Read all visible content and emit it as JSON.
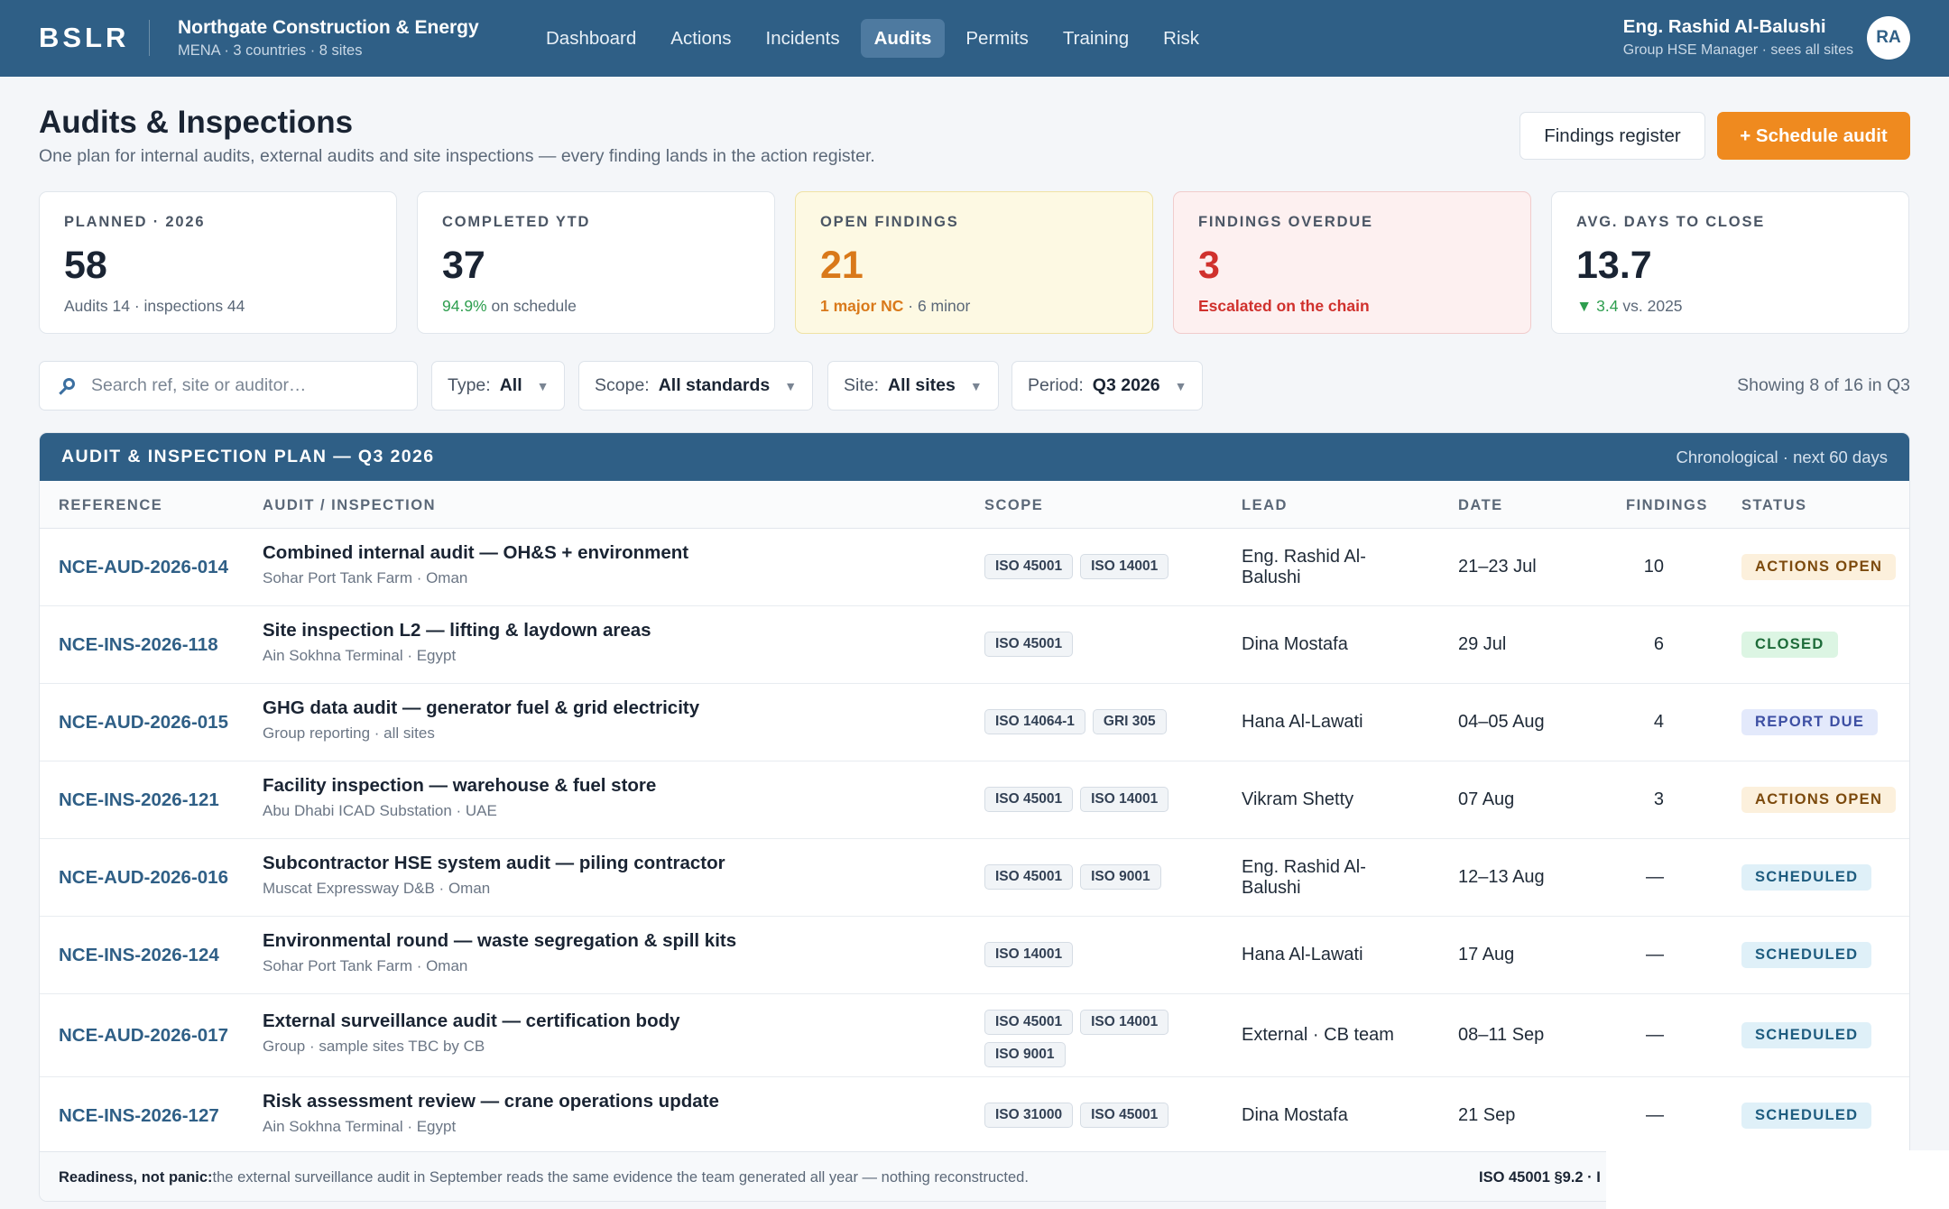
{
  "app": {
    "brand": "BSLR",
    "org_name": "Northgate Construction & Energy",
    "org_sub": "MENA · 3 countries · 8 sites"
  },
  "nav": [
    "Dashboard",
    "Actions",
    "Incidents",
    "Audits",
    "Permits",
    "Training",
    "Risk"
  ],
  "nav_active": "Audits",
  "user": {
    "name": "Eng. Rashid Al-Balushi",
    "role": "Group HSE Manager · sees all sites",
    "initials": "RA"
  },
  "page": {
    "title": "Audits & Inspections",
    "subtitle": "One plan for internal audits, external audits and site inspections — every finding lands in the action register.",
    "btn_findings": "Findings register",
    "btn_schedule": "+ Schedule audit"
  },
  "kpis": [
    {
      "label": "PLANNED · 2026",
      "value": "58",
      "note": "Audits 14 · inspections 44"
    },
    {
      "label": "COMPLETED YTD",
      "value": "37",
      "note_strong": "94.9%",
      "note_rest": " on schedule"
    },
    {
      "label": "OPEN FINDINGS",
      "value": "21",
      "note_strong": "1 major NC",
      "note_rest": " · 6 minor"
    },
    {
      "label": "FINDINGS OVERDUE",
      "value": "3",
      "note": "Escalated on the chain"
    },
    {
      "label": "AVG. DAYS TO CLOSE",
      "value": "13.7",
      "note_strong": "▼ 3.4",
      "note_rest": " vs. 2025"
    }
  ],
  "filters": {
    "search_placeholder": "Search ref, site or auditor…",
    "type_label": "Type:",
    "type_value": "All",
    "scope_label": "Scope:",
    "scope_value": "All standards",
    "site_label": "Site:",
    "site_value": "All sites",
    "period_label": "Period:",
    "period_value": "Q3 2026",
    "showing": "Showing 8 of 16 in Q3"
  },
  "table": {
    "title": "AUDIT & INSPECTION PLAN — Q3 2026",
    "meta": "Chronological · next 60 days",
    "columns": [
      "REFERENCE",
      "AUDIT / INSPECTION",
      "SCOPE",
      "LEAD",
      "DATE",
      "FINDINGS",
      "STATUS"
    ],
    "rows": [
      {
        "ref": "NCE-AUD-2026-014",
        "title": "Combined internal audit — OH&S + environment",
        "sub": "Sohar Port Tank Farm · Oman",
        "scope": [
          "ISO 45001",
          "ISO 14001"
        ],
        "lead": "Eng. Rashid Al-Balushi",
        "date": "21–23 Jul",
        "findings": "10",
        "status": "ACTIONS OPEN"
      },
      {
        "ref": "NCE-INS-2026-118",
        "title": "Site inspection L2 — lifting & laydown areas",
        "sub": "Ain Sokhna Terminal · Egypt",
        "scope": [
          "ISO 45001"
        ],
        "lead": "Dina Mostafa",
        "date": "29 Jul",
        "findings": "6",
        "status": "CLOSED"
      },
      {
        "ref": "NCE-AUD-2026-015",
        "title": "GHG data audit — generator fuel & grid electricity",
        "sub": "Group reporting · all sites",
        "scope": [
          "ISO 14064-1",
          "GRI 305"
        ],
        "lead": "Hana Al-Lawati",
        "date": "04–05 Aug",
        "findings": "4",
        "status": "REPORT DUE"
      },
      {
        "ref": "NCE-INS-2026-121",
        "title": "Facility inspection — warehouse & fuel store",
        "sub": "Abu Dhabi ICAD Substation · UAE",
        "scope": [
          "ISO 45001",
          "ISO 14001"
        ],
        "lead": "Vikram Shetty",
        "date": "07 Aug",
        "findings": "3",
        "status": "ACTIONS OPEN"
      },
      {
        "ref": "NCE-AUD-2026-016",
        "title": "Subcontractor HSE system audit — piling contractor",
        "sub": "Muscat Expressway D&B · Oman",
        "scope": [
          "ISO 45001",
          "ISO 9001"
        ],
        "lead": "Eng. Rashid Al-Balushi",
        "date": "12–13 Aug",
        "findings": "—",
        "status": "SCHEDULED"
      },
      {
        "ref": "NCE-INS-2026-124",
        "title": "Environmental round — waste segregation & spill kits",
        "sub": "Sohar Port Tank Farm · Oman",
        "scope": [
          "ISO 14001"
        ],
        "lead": "Hana Al-Lawati",
        "date": "17 Aug",
        "findings": "—",
        "status": "SCHEDULED"
      },
      {
        "ref": "NCE-AUD-2026-017",
        "title": "External surveillance audit — certification body",
        "sub": "Group · sample sites TBC by CB",
        "scope": [
          "ISO 45001",
          "ISO 14001",
          "ISO 9001"
        ],
        "lead": "External · CB team",
        "date": "08–11 Sep",
        "findings": "—",
        "status": "SCHEDULED"
      },
      {
        "ref": "NCE-INS-2026-127",
        "title": "Risk assessment review — crane operations update",
        "sub": "Ain Sokhna Terminal · Egypt",
        "scope": [
          "ISO 31000",
          "ISO 45001"
        ],
        "lead": "Dina Mostafa",
        "date": "21 Sep",
        "findings": "—",
        "status": "SCHEDULED"
      }
    ]
  },
  "footnote": {
    "strong": "Readiness, not panic:",
    "text": " the external surveillance audit in September reads the same evidence the team generated all year — nothing reconstructed.",
    "ref": "ISO 45001 §9.2 · I"
  },
  "colors": {
    "header": "#2f5f86",
    "accent": "#ef8a1f",
    "warn": "#d9791a",
    "danger": "#d0312d",
    "positive": "#2e9e4f"
  }
}
